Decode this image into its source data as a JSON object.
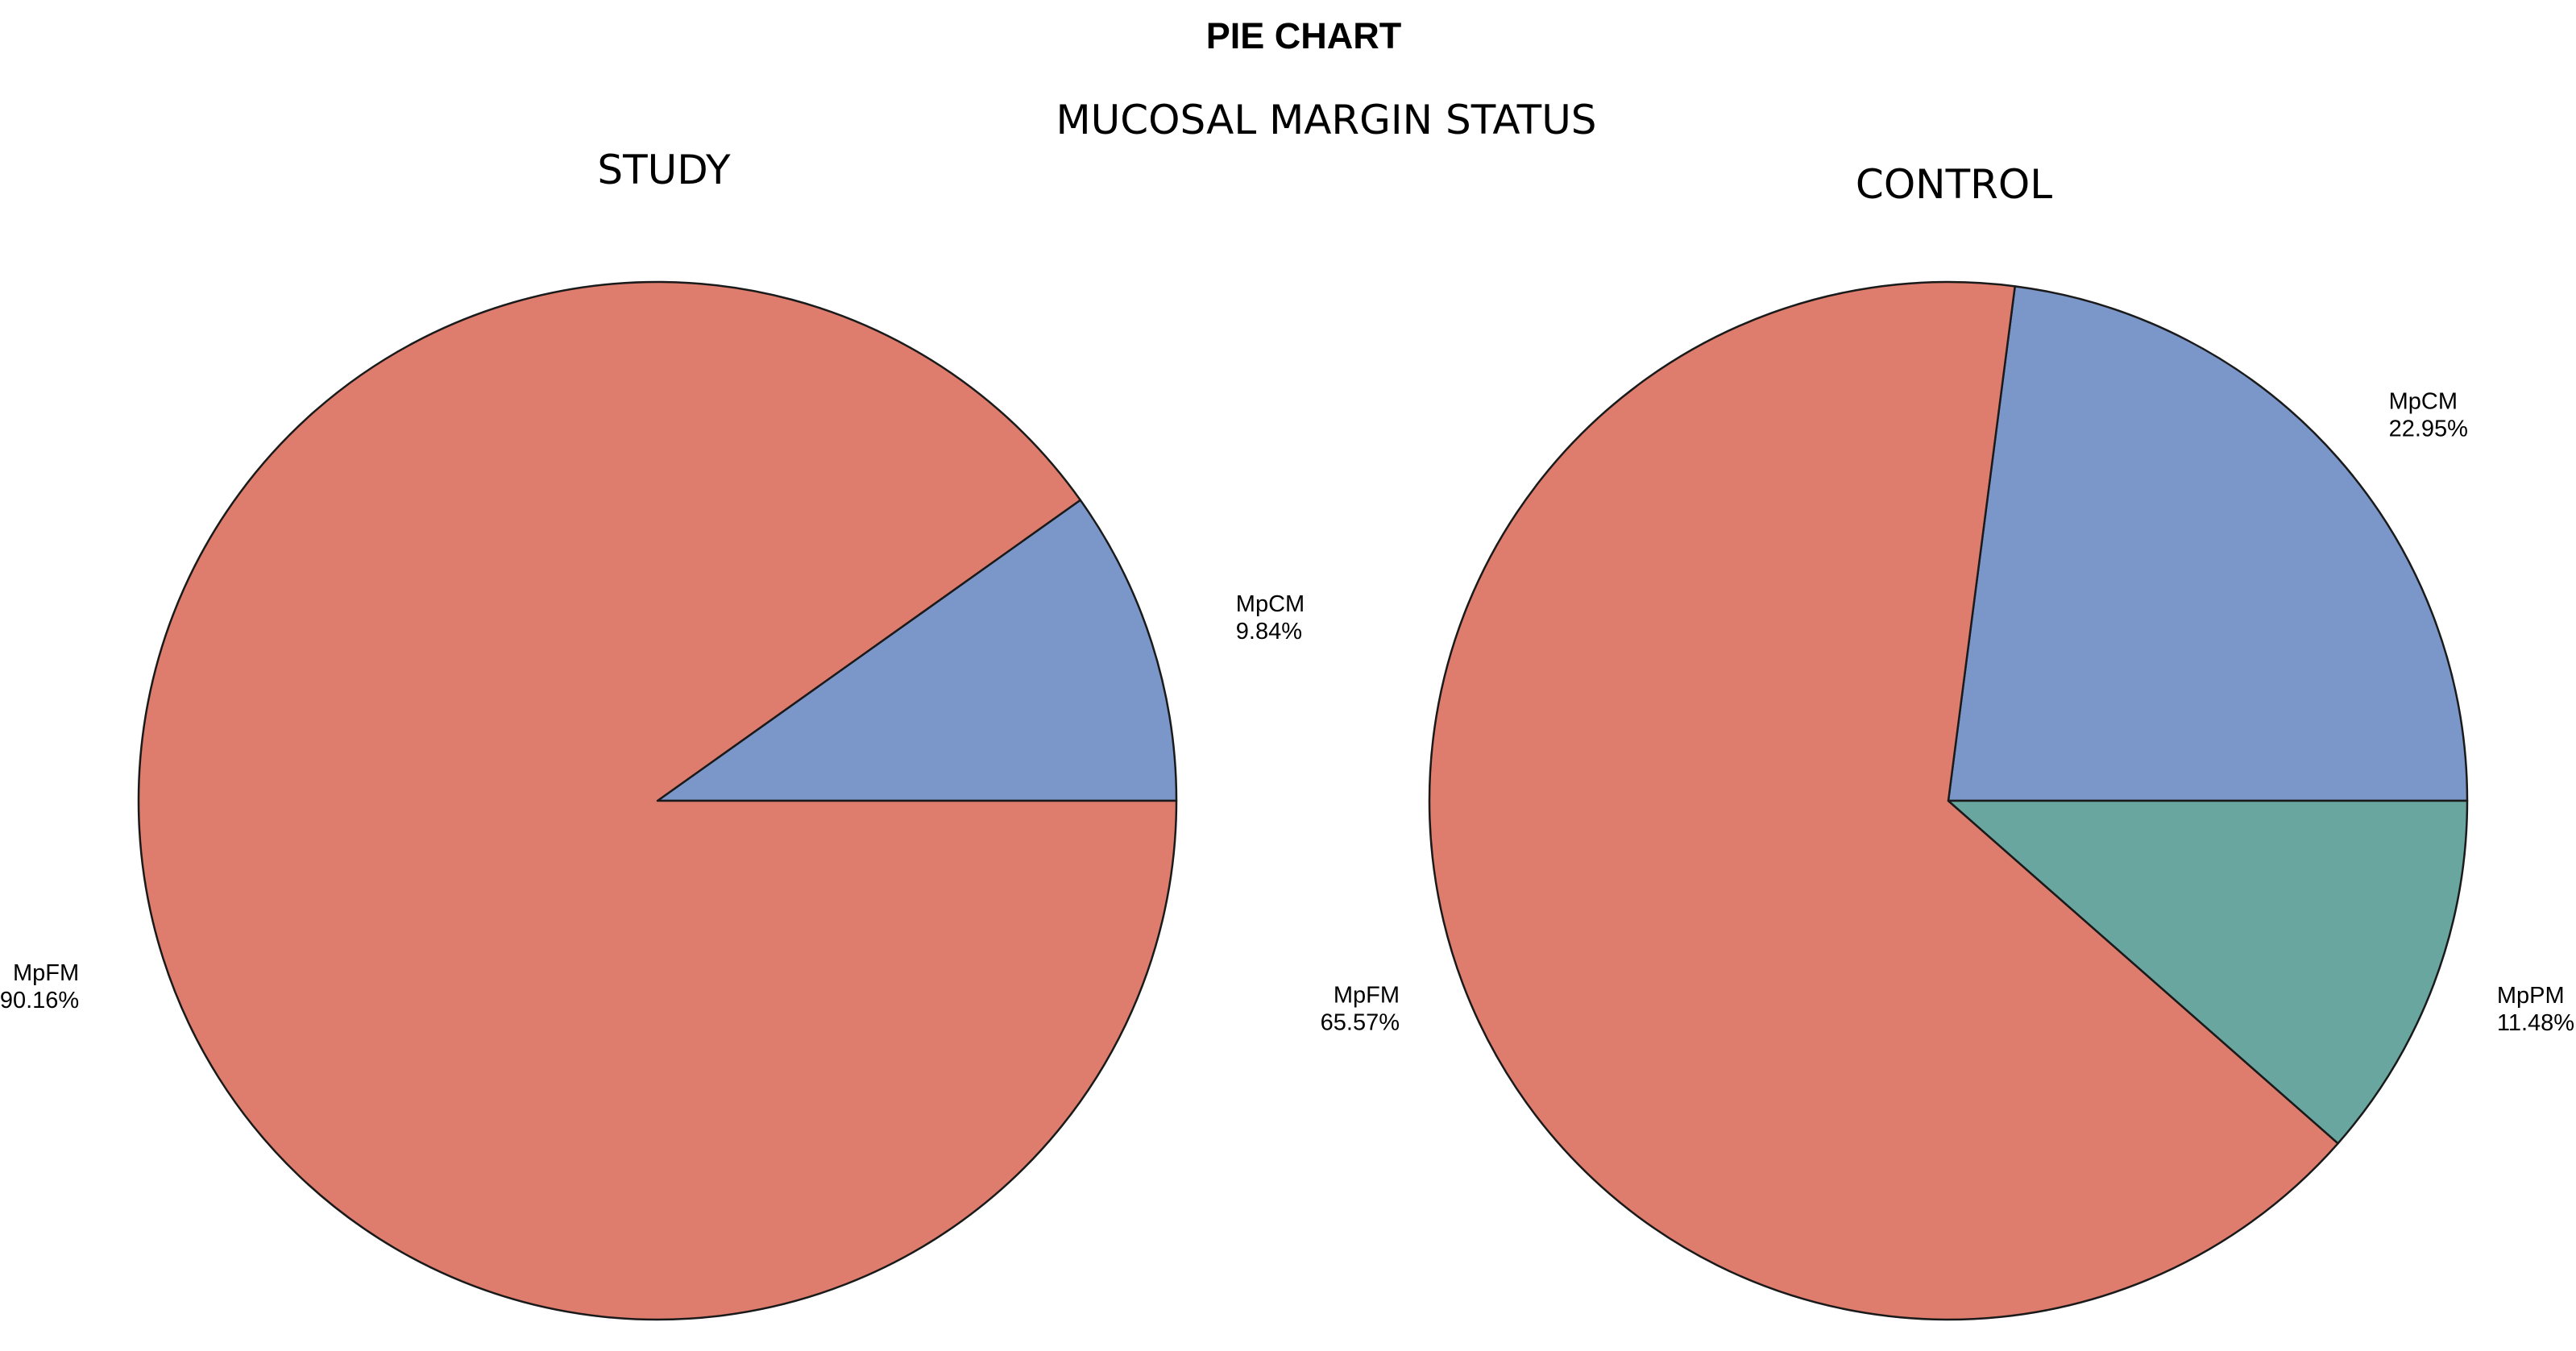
{
  "title": "PIE CHART",
  "subtitle": "MUCOSAL MARGIN STATUS",
  "colors": {
    "MpCM": "#7b96c8",
    "MpFM": "#de7d6e",
    "MpPM": "#68a69f"
  },
  "chart_data": [
    {
      "type": "pie",
      "title": "STUDY",
      "slices": [
        {
          "label": "MpCM",
          "value": 9.84,
          "display": "9.84%"
        },
        {
          "label": "MpFM",
          "value": 90.16,
          "display": "90.16%"
        }
      ]
    },
    {
      "type": "pie",
      "title": "CONTROL",
      "slices": [
        {
          "label": "MpCM",
          "value": 22.95,
          "display": "22.95%"
        },
        {
          "label": "MpFM",
          "value": 65.57,
          "display": "65.57%"
        },
        {
          "label": "MpPM",
          "value": 11.48,
          "display": "11.48%"
        }
      ]
    }
  ]
}
